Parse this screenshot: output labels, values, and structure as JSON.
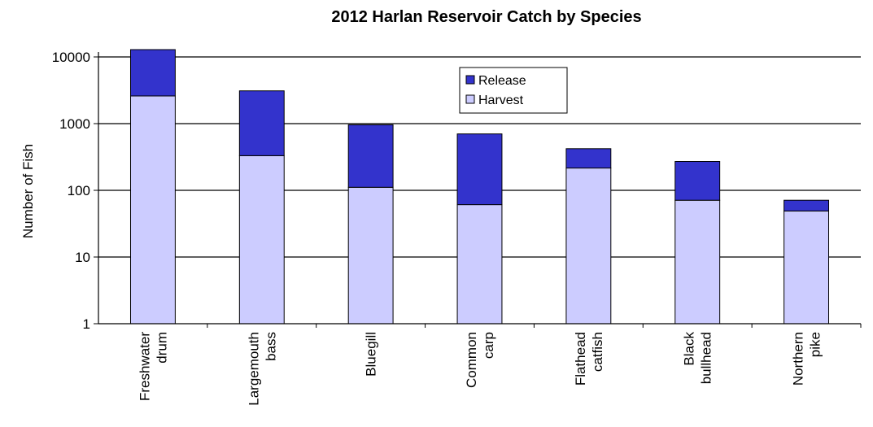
{
  "chart_data": {
    "type": "bar",
    "stacked": true,
    "title": "2012 Harlan Reservoir Catch by Species",
    "xlabel": "",
    "ylabel": "Number of Fish",
    "yscale": "log",
    "ylim": [
      1,
      10000
    ],
    "yticks": [
      "1",
      "10",
      "100",
      "1000",
      "10000"
    ],
    "grid": true,
    "legend": "top-center",
    "categories": [
      [
        "Freshwater",
        "drum"
      ],
      [
        "Largemouth",
        "bass"
      ],
      [
        "Bluegill"
      ],
      [
        "Common",
        "carp"
      ],
      [
        "Flathead",
        "catfish"
      ],
      [
        "Black",
        "bullhead"
      ],
      [
        "Northern",
        "pike"
      ]
    ],
    "series": [
      {
        "name": "Harvest",
        "color": "#ccccff",
        "values": [
          2600,
          330,
          110,
          60,
          215,
          70,
          48
        ]
      },
      {
        "name": "Release",
        "color": "#3333cc",
        "values": [
          10400,
          2770,
          850,
          640,
          205,
          200,
          22
        ]
      }
    ],
    "legend_order": [
      "Release",
      "Harvest"
    ]
  }
}
